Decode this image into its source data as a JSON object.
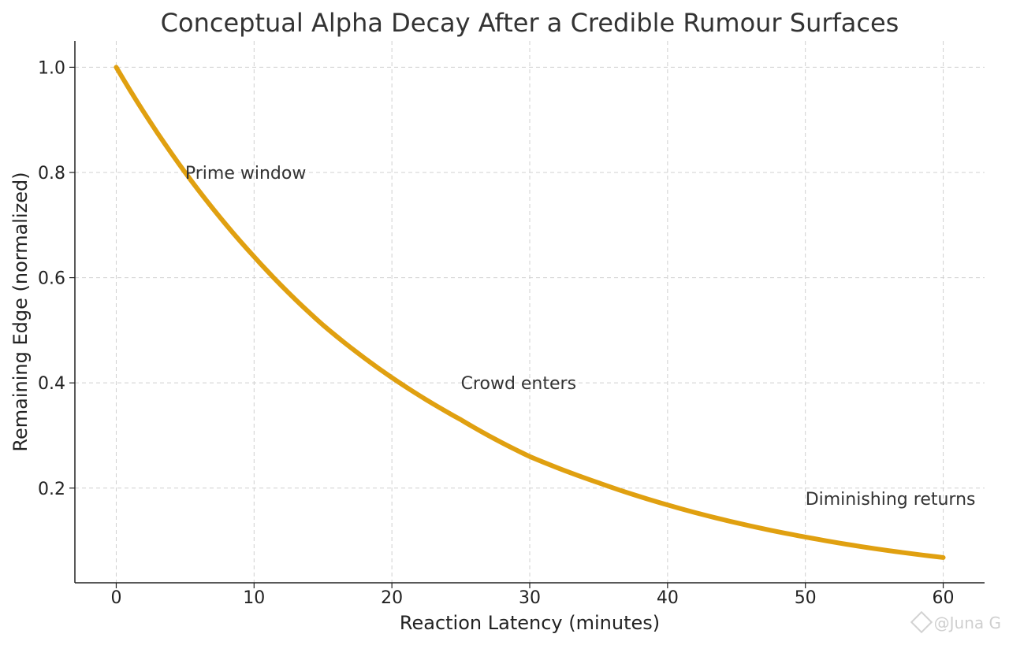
{
  "chart_data": {
    "type": "line",
    "title": "Conceptual Alpha Decay After a Credible Rumour Surfaces",
    "xlabel": "Reaction Latency (minutes)",
    "ylabel": "Remaining Edge (normalized)",
    "xlim": [
      -3,
      63
    ],
    "ylim": [
      0.02,
      1.05
    ],
    "xticks": [
      0,
      10,
      20,
      30,
      40,
      50,
      60
    ],
    "yticks": [
      0.2,
      0.4,
      0.6,
      0.8,
      1.0
    ],
    "ytick_labels": [
      "0.2",
      "0.4",
      "0.6",
      "0.8",
      "1.0"
    ],
    "grid": true,
    "series": [
      {
        "color": "#E0A010",
        "x": [
          0,
          5,
          10,
          15,
          20,
          25,
          30,
          35,
          40,
          45,
          50,
          55,
          60
        ],
        "y": [
          1.0,
          0.8,
          0.64,
          0.51,
          0.41,
          0.33,
          0.26,
          0.21,
          0.168,
          0.134,
          0.107,
          0.085,
          0.068
        ]
      }
    ],
    "annotations": [
      {
        "text": "Prime window",
        "x": 5,
        "y": 0.8
      },
      {
        "text": "Crowd enters",
        "x": 25,
        "y": 0.4
      },
      {
        "text": "Diminishing returns",
        "x": 50,
        "y": 0.18
      }
    ]
  },
  "watermark": "@Juna G"
}
